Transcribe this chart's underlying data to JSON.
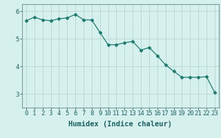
{
  "x": [
    0,
    1,
    2,
    3,
    4,
    5,
    6,
    7,
    8,
    9,
    10,
    11,
    12,
    13,
    14,
    15,
    16,
    17,
    18,
    19,
    20,
    21,
    22,
    23
  ],
  "y": [
    5.65,
    5.78,
    5.68,
    5.65,
    5.72,
    5.75,
    5.88,
    5.68,
    5.68,
    5.22,
    4.78,
    4.78,
    4.85,
    4.9,
    4.58,
    4.68,
    4.38,
    4.05,
    3.82,
    3.6,
    3.6,
    3.6,
    3.62,
    3.05
  ],
  "line_color": "#1a7a6e",
  "marker": "D",
  "marker_size": 2.5,
  "bg_color": "#d6f0ee",
  "grid_color": "#bcd8d5",
  "spine_color": "#7a9a98",
  "xlabel": "Humidex (Indice chaleur)",
  "xlim": [
    -0.5,
    23.5
  ],
  "ylim": [
    2.5,
    6.25
  ],
  "yticks": [
    3,
    4,
    5,
    6
  ],
  "xticks": [
    0,
    1,
    2,
    3,
    4,
    5,
    6,
    7,
    8,
    9,
    10,
    11,
    12,
    13,
    14,
    15,
    16,
    17,
    18,
    19,
    20,
    21,
    22,
    23
  ],
  "font_color": "#1a6060",
  "xlabel_fontsize": 7.5,
  "tick_fontsize": 6.5
}
